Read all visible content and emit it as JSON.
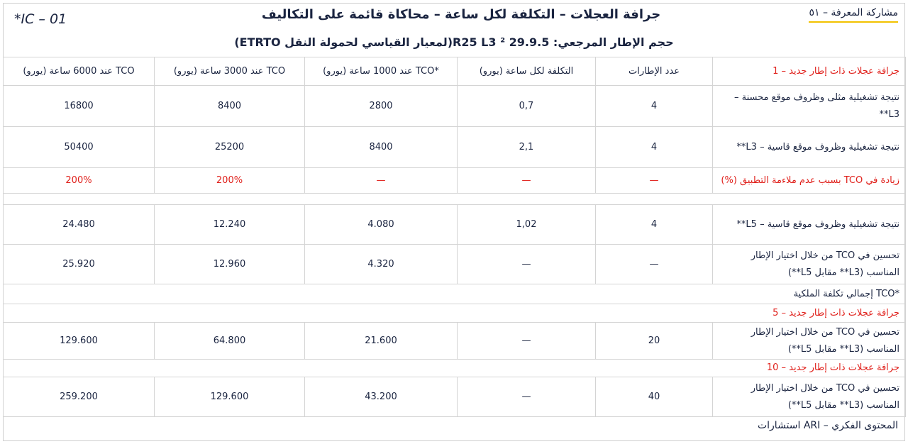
{
  "header": {
    "code": "*IC – 01",
    "title": "جرافة العجلات – التكلفة لكل ساعة – محاكاة قائمة على التكاليف",
    "badge": "مشاركة المعرفة – ٥١",
    "subtitle": "حجم الإطار المرجعي: 29.9.5 R25 L3 ²(لمعيار القياسي لحمولة النقل ETRTO)"
  },
  "table": {
    "header": [
      "جرافة عجلات ذات إطار جديد – 1",
      "عدد الإطارات",
      "التكلفة لكل ساعة (يورو)",
      "*TCO عند 1000 ساعة (يورو)",
      "TCO عند 3000 ساعة (يورو)",
      "TCO عند 6000 ساعة (يورو)"
    ],
    "rows": [
      [
        "نتيجة تشغيلية مثلى وظروف موقع محسنة – L3**",
        "4",
        "0,7",
        "2800",
        "8400",
        "16800"
      ],
      [
        "نتيجة تشغيلية وظروف موقع قاسية – L3**",
        "4",
        "2,1",
        "8400",
        "25200",
        "50400"
      ],
      [
        "زيادة في TCO بسبب عدم ملاءمة التطبيق (%)",
        "—",
        "—",
        "—",
        "200%",
        "200%"
      ],
      [
        "نتيجة تشغيلية وظروف موقع قاسية – L5**",
        "4",
        "1,02",
        "4.080",
        "12.240",
        "24.480"
      ],
      [
        "تحسين في TCO من خلال اختيار الإطار المناسب (L3** مقابل L5**)",
        "—",
        "—",
        "4.320",
        "12.960",
        "25.920"
      ],
      [
        "*TCO إجمالي تكلفة الملكية"
      ],
      [
        "جرافة عجلات ذات إطار جديد – 5"
      ],
      [
        "تحسين في TCO من خلال اختيار الإطار المناسب (L3** مقابل L5**)",
        "20",
        "—",
        "21.600",
        "64.800",
        "129.600"
      ],
      [
        "جرافة عجلات ذات إطار جديد – 10"
      ],
      [
        "تحسين في TCO من خلال اختيار الإطار المناسب (L3** مقابل L5**)",
        "40",
        "—",
        "43.200",
        "129.600",
        "259.200"
      ]
    ]
  },
  "footer": "المحتوى الفكري – ARI استشارات"
}
